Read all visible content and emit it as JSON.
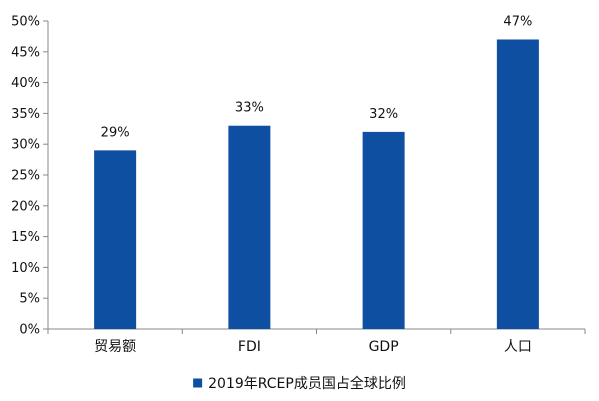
{
  "chart_data": {
    "type": "bar",
    "categories": [
      "贸易额",
      "FDI",
      "GDP",
      "人口"
    ],
    "series": [
      {
        "name": "2019年RCEP成员国占全球比例",
        "values": [
          29,
          33,
          32,
          47
        ],
        "data_labels": [
          "29%",
          "33%",
          "32%",
          "47%"
        ],
        "color": "#0f4fa1"
      }
    ],
    "ylim": [
      0,
      50
    ],
    "yticks": [
      0,
      5,
      10,
      15,
      20,
      25,
      30,
      35,
      40,
      45,
      50
    ],
    "ytick_labels": [
      "0%",
      "5%",
      "10%",
      "15%",
      "20%",
      "25%",
      "30%",
      "35%",
      "40%",
      "45%",
      "50%"
    ],
    "grid": false,
    "legend_position": "bottom-center",
    "title": "",
    "xlabel": "",
    "ylabel": ""
  }
}
